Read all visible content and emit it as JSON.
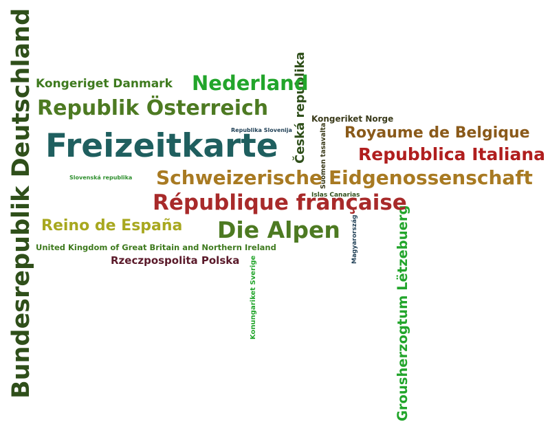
{
  "words": {
    "bundesrepublik_deutschland": {
      "text": "Bundesrepublik Deutschland",
      "color": "#2f4f1a"
    },
    "kongeriget_danmark": {
      "text": "Kongeriget Danmark",
      "color": "#3e7a1e"
    },
    "nederland": {
      "text": "Nederland",
      "color": "#22a52b"
    },
    "ceska_republika": {
      "text": "Česká republika",
      "color": "#2f4f1a"
    },
    "republik_osterreich": {
      "text": "Republik Österreich",
      "color": "#4d7a22"
    },
    "republika_slovenija": {
      "text": "Republika Slovenija",
      "color": "#1f3f55"
    },
    "kongeriket_norge": {
      "text": "Kongeriket Norge",
      "color": "#3a3a1a"
    },
    "freizeitkarte": {
      "text": "Freizeitkarte",
      "color": "#1f5f5f"
    },
    "royaume_de_belgique": {
      "text": "Royaume de Belgique",
      "color": "#8a5a1a"
    },
    "repubblica_italiana": {
      "text": "Repubblica Italiana",
      "color": "#b01e1e"
    },
    "suomen_tasavalta": {
      "text": "Suomen tasavalta",
      "color": "#3a3a1a"
    },
    "slovenska_republika": {
      "text": "Slovenská republika",
      "color": "#2e8f2e"
    },
    "schweizerische": {
      "text": "Schweizerische",
      "color": "#a87a22"
    },
    "eidgenossenschaft": {
      "text": "Eidgenossenschaft",
      "color": "#a87a22"
    },
    "republique_francaise": {
      "text": "République française",
      "color": "#a82a2a"
    },
    "islas_canarias": {
      "text": "Islas Canarias",
      "color": "#2f4f1a"
    },
    "grousherzogtum": {
      "text": "Grousherzogtum Lëtzebuerg",
      "color": "#22a52b"
    },
    "reino_de_espana": {
      "text": "Reino de España",
      "color": "#a8a820"
    },
    "die_alpen": {
      "text": "Die Alpen",
      "color": "#4d7a22"
    },
    "magyarorszag": {
      "text": "Magyarország",
      "color": "#1f3f55"
    },
    "united_kingdom": {
      "text": "United Kingdom of Great Britain and Northern Ireland",
      "color": "#3e7a1e"
    },
    "rzeczpospolita": {
      "text": "Rzeczpospolita Polska",
      "color": "#5a1a2a"
    },
    "konungariket_sverige": {
      "text": "Konungariket Sverige",
      "color": "#22a52b"
    }
  }
}
